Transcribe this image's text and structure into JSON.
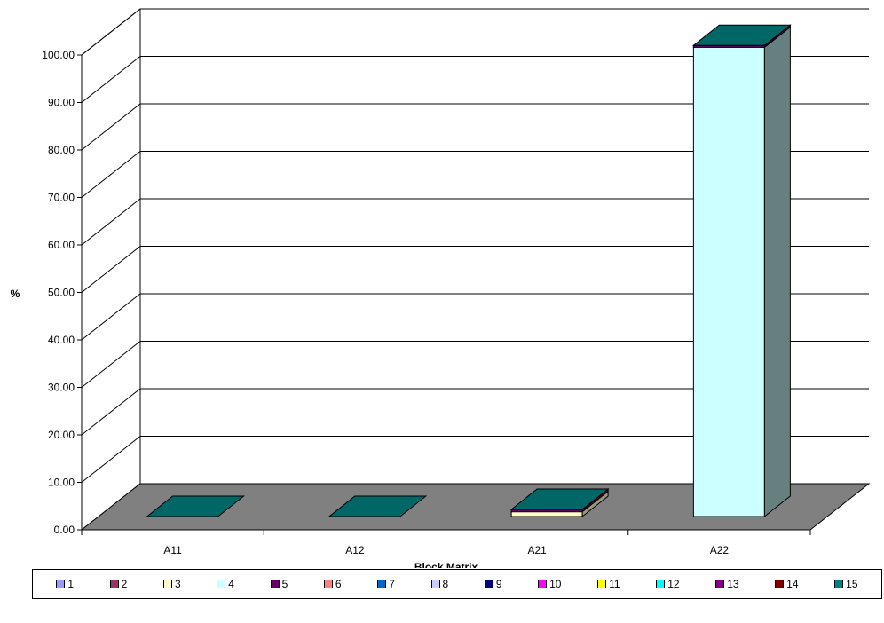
{
  "chart_data": {
    "type": "bar",
    "style": "3d-stacked-column",
    "categories": [
      "A11",
      "A12",
      "A21",
      "A22"
    ],
    "xlabel": "Block Matrix",
    "ylabel": "%",
    "ylim": [
      0,
      100
    ],
    "yticks": [
      "0.00",
      "10.00",
      "20.00",
      "30.00",
      "40.00",
      "50.00",
      "60.00",
      "70.00",
      "80.00",
      "90.00",
      "100.00"
    ],
    "grid": true,
    "legend_position": "bottom",
    "series": [
      {
        "name": "1",
        "color": "#9999FF",
        "values": [
          0,
          0,
          0,
          0
        ]
      },
      {
        "name": "2",
        "color": "#993366",
        "values": [
          0,
          0,
          0,
          0
        ]
      },
      {
        "name": "3",
        "color": "#FFFFCC",
        "values": [
          0,
          0,
          1.0,
          0
        ]
      },
      {
        "name": "4",
        "color": "#CCFFFF",
        "values": [
          0,
          0,
          0,
          98.8
        ]
      },
      {
        "name": "5",
        "color": "#660066",
        "values": [
          0,
          0,
          0.5,
          0.4
        ]
      },
      {
        "name": "6",
        "color": "#FF8080",
        "values": [
          0,
          0,
          0,
          0
        ]
      },
      {
        "name": "7",
        "color": "#0066CC",
        "values": [
          0,
          0,
          0,
          0
        ]
      },
      {
        "name": "8",
        "color": "#CCCCFF",
        "values": [
          0,
          0,
          0,
          0
        ]
      },
      {
        "name": "9",
        "color": "#000080",
        "values": [
          0,
          0,
          0,
          0
        ]
      },
      {
        "name": "10",
        "color": "#FF00FF",
        "values": [
          0,
          0,
          0,
          0
        ]
      },
      {
        "name": "11",
        "color": "#FFFF00",
        "values": [
          0,
          0,
          0,
          0
        ]
      },
      {
        "name": "12",
        "color": "#00FFFF",
        "values": [
          0,
          0,
          0,
          0
        ]
      },
      {
        "name": "13",
        "color": "#800080",
        "values": [
          0,
          0,
          0,
          0
        ]
      },
      {
        "name": "14",
        "color": "#800000",
        "values": [
          0,
          0,
          0,
          0
        ]
      },
      {
        "name": "15",
        "color": "#008080",
        "values": [
          0,
          0,
          0,
          0
        ]
      }
    ],
    "floor_color": "#808080",
    "top_color": "#006666"
  }
}
